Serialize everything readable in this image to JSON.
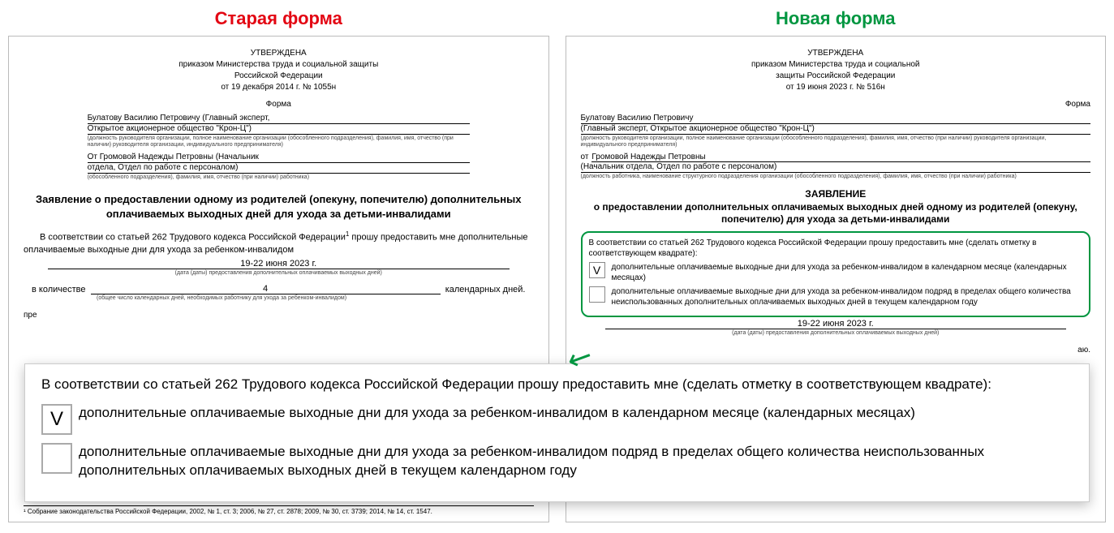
{
  "columns": {
    "old": {
      "title": "Старая форма",
      "title_color": "#e30613",
      "approved": {
        "line1": "УТВЕРЖДЕНА",
        "line2": "приказом Министерства труда и социальной защиты",
        "line3": "Российской Федерации",
        "line4": "от 19 декабря 2014 г. № 1055н"
      },
      "form_label": "Форма",
      "recipient": {
        "line1": "Булатову Василию Петровичу (Главный эксперт,",
        "line2": "Открытое акционерное общество \"Крон-Ц\")",
        "caption": "(должность руководителя организации, полное наименование организации (обособленного подразделения), фамилия, имя, отчество (при наличии) руководителя организации, индивидуального предпринимателя)"
      },
      "from": {
        "line1": "От Громовой Надежды Петровны (Начальник",
        "line2": "отдела, Отдел по работе с персоналом)",
        "caption": "(обособленного подразделения), фамилия, имя, отчество (при наличии) работника)"
      },
      "statement_title": "Заявление о предоставлении одному из родителей (опекуну, попечителю) дополнительных оплачиваемых выходных дней для ухода за детьми-инвалидами",
      "body_prefix": "В соответствии со статьей 262 Трудового кодекса Российской Федерации",
      "body_sup": "1",
      "body_suffix": " прошу предоставить мне дополнительные оплачиваемые выходные дни для ухода за ребенком-инвалидом",
      "date_value": "19-22 июня 2023 г.",
      "date_caption": "(дата (даты) предоставления дополнительных оплачиваемых выходных дней)",
      "qty_label": "в количестве",
      "qty_value": "4",
      "qty_suffix": "календарных дней.",
      "qty_caption": "(общее число календарных дней, необходимых работнику для ухода за ребенком-инвалидом)",
      "truncated": "пре",
      "footnote": "¹ Собрание законодательства Российской Федерации, 2002, № 1, ст. 3; 2006, № 27, ст. 2878; 2009, № 30, ст. 3739; 2014, № 14, ст. 1547."
    },
    "new": {
      "title": "Новая форма",
      "title_color": "#009640",
      "approved": {
        "line1": "УТВЕРЖДЕНА",
        "line2": "приказом Министерства труда и социальной",
        "line3": "защиты Российской Федерации",
        "line4": "от 19 июня 2023 г. № 516н"
      },
      "form_label": "Форма",
      "recipient": {
        "line1": "Булатову Василию Петровичу",
        "line2": "(Главный эксперт, Открытое акционерное общество \"Крон-Ц\")",
        "caption": "(должность руководителя организации, полное наименование организации (обособленного подразделения), фамилия, имя, отчество (при наличии) руководителя организации, индивидуального предпринимателя)"
      },
      "from_label": "от",
      "from": {
        "line1": "Громовой Надежды Петровны",
        "line2": "(Начальник отдела, Отдел по работе с персоналом)",
        "caption": "(должность работника, наименование структурного подразделения организации (обособленного подразделения), фамилия, имя, отчество (при наличии) работника)"
      },
      "statement_word": "ЗАЯВЛЕНИЕ",
      "statement_sub": "о предоставлении дополнительных оплачиваемых выходных дней одному из родителей (опекуну, попечителю) для ухода за детьми-инвалидами",
      "box": {
        "intro": "В соответствии со статьей 262 Трудового кодекса Российской Федерации прошу предоставить мне (сделать отметку в соответствующем квадрате):",
        "option1": {
          "checked": true,
          "mark": "V",
          "text": "дополнительные оплачиваемые выходные дни для ухода за ребенком-инвалидом в календарном месяце (календарных месяцах)"
        },
        "option2": {
          "checked": false,
          "mark": "",
          "text": "дополнительные оплачиваемые выходные дни для ухода за ребенком-инвалидом подряд в пределах общего количества неиспользованных дополнительных оплачиваемых выходных дней в текущем календарном году"
        }
      },
      "date_value": "19-22 июня 2023 г.",
      "date_caption": "(дата (даты) предоставления дополнительных оплачиваемых выходных дней)",
      "truncated": "аю."
    }
  },
  "callout": {
    "intro": "В соответствии со статьей 262 Трудового кодекса Российской Федерации прошу предоставить мне (сделать отметку в соответствующем квадрате):",
    "option1_mark": "V",
    "option1_text": "дополнительные оплачиваемые выходные дни для ухода за ребенком-инвалидом в календарном месяце (календарных месяцах)",
    "option2_mark": "",
    "option2_text": "дополнительные оплачиваемые выходные дни для ухода за ребенком-инвалидом подряд в пределах общего количества неиспользованных дополнительных оплачиваемых выходных дней в текущем календарном году"
  },
  "style": {
    "green": "#009640",
    "red": "#e30613",
    "border": "#bbbbbb"
  }
}
